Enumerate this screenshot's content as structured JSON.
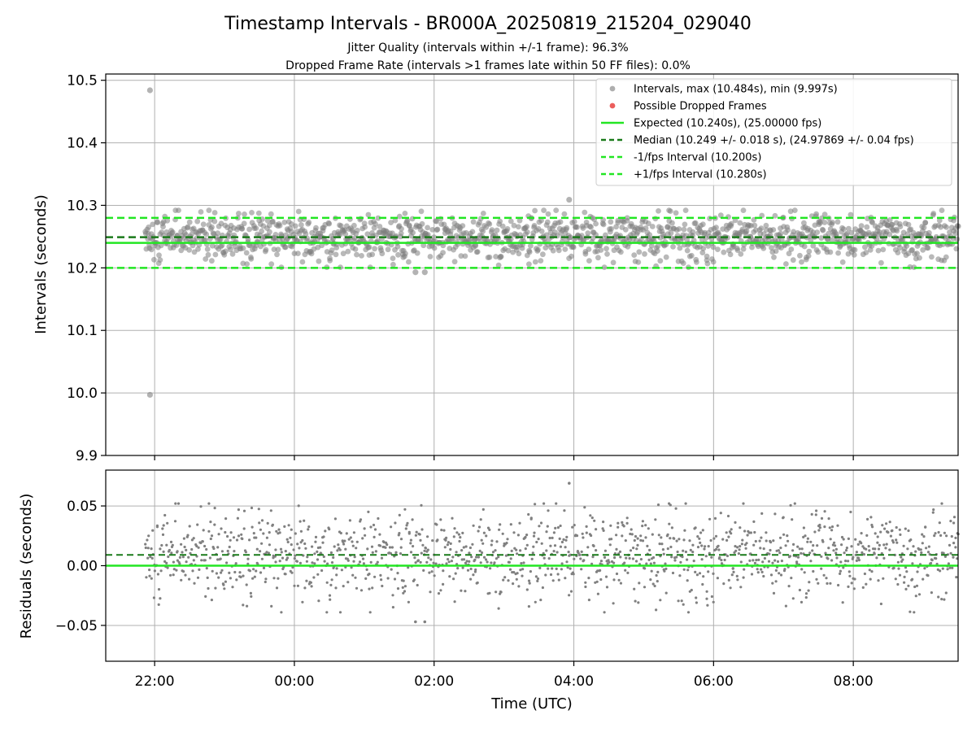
{
  "figure": {
    "title": "Timestamp Intervals - BR000A_20250819_215204_029040",
    "subtitle_1": "Jitter Quality (intervals within +/-1 frame): 96.3%",
    "subtitle_2": "Dropped Frame Rate (intervals >1 frames late within 50 FF files): 0.0%",
    "xlabel": "Time (UTC)"
  },
  "colors": {
    "points": "#808080",
    "dropped": "#e8423f",
    "expected": "#22e622",
    "median": "#1a7a1a",
    "interval": "#22e622",
    "grid": "#b0b0b0"
  },
  "chart_data": [
    {
      "type": "scatter",
      "ylabel": "Intervals (seconds)",
      "x_range_hours": [
        -2.7,
        9.5
      ],
      "xlim_labels": [
        "21:18",
        "09:30"
      ],
      "ylim": [
        9.9,
        10.51
      ],
      "yticks": [
        9.9,
        10.0,
        10.1,
        10.2,
        10.3,
        10.4,
        10.5
      ],
      "ytick_labels": [
        "9.9",
        "10.0",
        "10.1",
        "10.2",
        "10.3",
        "10.4",
        "10.5"
      ],
      "xticks": [
        -2,
        0,
        2,
        4,
        6,
        8
      ],
      "grid": true,
      "legend_placement": "top-right",
      "data_start": "21:52",
      "data_end": "09:30",
      "reference_lines": {
        "expected": 10.24,
        "median": 10.249,
        "minus_fps": 10.2,
        "plus_fps": 10.28
      },
      "outliers": [
        {
          "t": "21:56",
          "y": 10.484
        },
        {
          "t": "21:56",
          "y": 9.997
        },
        {
          "t": "03:56",
          "y": 10.309
        },
        {
          "t": "01:44",
          "y": 10.193
        },
        {
          "t": "01:52",
          "y": 10.193
        }
      ],
      "legend": [
        {
          "label": "Intervals, max (10.484s), min (9.997s)",
          "marker": "dot",
          "color": "#a0a0a0"
        },
        {
          "label": "Possible Dropped Frames",
          "marker": "dot",
          "color": "#e8423f"
        },
        {
          "label": "Expected (10.240s), (25.00000 fps)",
          "marker": "solid",
          "color": "#22e622"
        },
        {
          "label": "Median (10.249 +/- 0.018 s), (24.97869 +/- 0.04 fps)",
          "marker": "dashed",
          "color": "#1a7a1a"
        },
        {
          "label": "-1/fps Interval (10.200s)",
          "marker": "dashed",
          "color": "#22e622"
        },
        {
          "label": "+1/fps Interval (10.280s)",
          "marker": "dashed",
          "color": "#22e622"
        }
      ]
    },
    {
      "type": "scatter",
      "ylabel": "Residuals (seconds)",
      "ylim": [
        -0.08,
        0.08
      ],
      "yticks": [
        -0.05,
        0.0,
        0.05
      ],
      "ytick_labels": [
        "−0.05",
        "0.00",
        "0.05"
      ],
      "xticks": [
        -2,
        0,
        2,
        4,
        6,
        8
      ],
      "xtick_labels": [
        "22:00",
        "00:00",
        "02:00",
        "04:00",
        "06:00",
        "08:00"
      ],
      "grid": true,
      "reference_lines": {
        "zero": 0.0,
        "median": 0.009
      }
    }
  ]
}
